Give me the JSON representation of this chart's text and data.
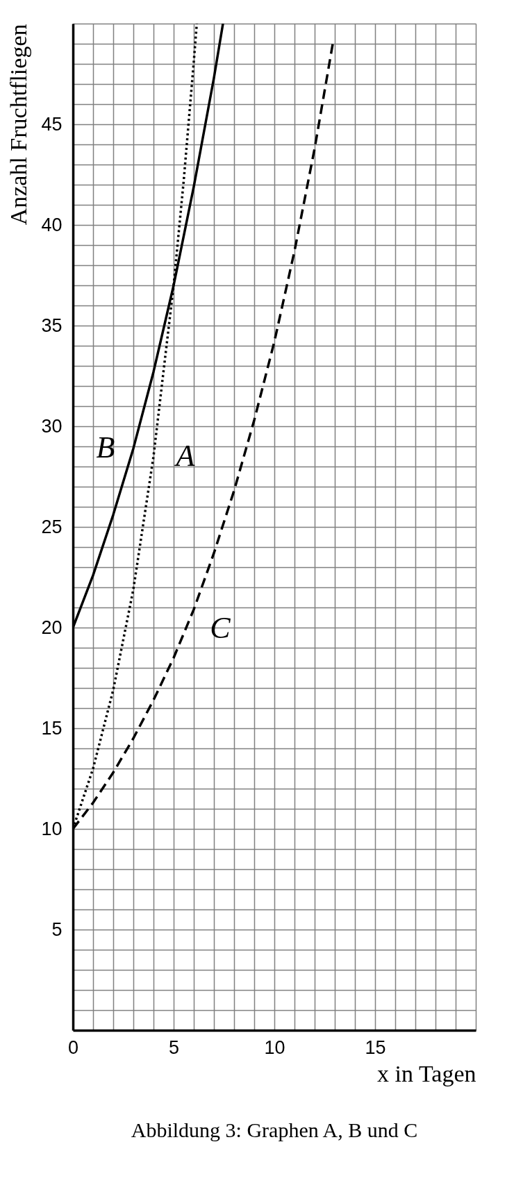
{
  "chart_data": {
    "type": "line",
    "xlabel": "x in Tagen",
    "ylabel": "Anzahl Fruchtfliegen",
    "annotations": [
      "Abbildung 3: Graphen A, B und C"
    ],
    "xlim": [
      0,
      20
    ],
    "ylim": [
      0,
      50
    ],
    "xticks": [
      0,
      {
        "value": 1,
        "label": null
      },
      {
        "value": 2,
        "label": null
      },
      {
        "value": 3,
        "label": null
      },
      {
        "value": 4,
        "label": null
      },
      5,
      {
        "value": 6,
        "label": null
      },
      {
        "value": 7,
        "label": null
      },
      {
        "value": 8,
        "label": null
      },
      {
        "value": 9,
        "label": null
      },
      10,
      {
        "value": 11,
        "label": null
      },
      {
        "value": 12,
        "label": null
      },
      {
        "value": 13,
        "label": null
      },
      {
        "value": 14,
        "label": null
      },
      15,
      {
        "value": 16,
        "label": null
      },
      {
        "value": 17,
        "label": null
      },
      {
        "value": 18,
        "label": null
      },
      {
        "value": 19,
        "label": null
      },
      {
        "value": 20,
        "label": null
      }
    ],
    "yticks": [
      {
        "value": 0,
        "label": null
      },
      {
        "value": 1,
        "label": null
      },
      {
        "value": 2,
        "label": null
      },
      {
        "value": 3,
        "label": null
      },
      {
        "value": 4,
        "label": null
      },
      5,
      {
        "value": 6,
        "label": null
      },
      {
        "value": 7,
        "label": null
      },
      {
        "value": 8,
        "label": null
      },
      {
        "value": 9,
        "label": null
      },
      10,
      {
        "value": 11,
        "label": null
      },
      {
        "value": 12,
        "label": null
      },
      {
        "value": 13,
        "label": null
      },
      {
        "value": 14,
        "label": null
      },
      15,
      {
        "value": 16,
        "label": null
      },
      {
        "value": 17,
        "label": null
      },
      {
        "value": 18,
        "label": null
      },
      {
        "value": 19,
        "label": null
      },
      20,
      {
        "value": 21,
        "label": null
      },
      {
        "value": 22,
        "label": null
      },
      {
        "value": 23,
        "label": null
      },
      {
        "value": 24,
        "label": null
      },
      25,
      {
        "value": 26,
        "label": null
      },
      {
        "value": 27,
        "label": null
      },
      {
        "value": 28,
        "label": null
      },
      {
        "value": 29,
        "label": null
      },
      30,
      {
        "value": 31,
        "label": null
      },
      {
        "value": 32,
        "label": null
      },
      {
        "value": 33,
        "label": null
      },
      {
        "value": 34,
        "label": null
      },
      35,
      {
        "value": 36,
        "label": null
      },
      {
        "value": 37,
        "label": null
      },
      {
        "value": 38,
        "label": null
      },
      {
        "value": 39,
        "label": null
      },
      40,
      {
        "value": 41,
        "label": null
      },
      {
        "value": 42,
        "label": null
      },
      {
        "value": 43,
        "label": null
      },
      {
        "value": 44,
        "label": null
      },
      45,
      {
        "value": 46,
        "label": null
      },
      {
        "value": 47,
        "label": null
      },
      {
        "value": 48,
        "label": null
      },
      {
        "value": 49,
        "label": null
      },
      {
        "value": 50,
        "label": null
      }
    ],
    "grid": true,
    "marker": "none",
    "series": [
      {
        "name": "A",
        "color": "#000000",
        "line_style": "dotted",
        "x": [
          0,
          1,
          2,
          3,
          4,
          5,
          5.5,
          6,
          6.15
        ],
        "values": [
          10,
          13.0,
          16.9,
          21.9,
          28.5,
          37.0,
          42.2,
          48.1,
          50.0
        ]
      },
      {
        "name": "B",
        "color": "#000000",
        "line_style": "solid",
        "x": [
          0,
          1,
          2,
          3,
          4,
          5,
          6,
          7,
          7.45
        ],
        "values": [
          20,
          22.6,
          25.6,
          28.9,
          32.7,
          37.0,
          41.9,
          47.3,
          50.0
        ]
      },
      {
        "name": "C",
        "color": "#000000",
        "line_style": "dashed",
        "x": [
          0,
          1,
          2,
          3,
          4,
          5,
          6,
          7,
          8,
          9,
          10,
          11,
          12,
          12.9
        ],
        "values": [
          10,
          11.3,
          12.8,
          14.5,
          16.4,
          18.5,
          20.9,
          23.7,
          26.8,
          30.3,
          34.2,
          38.7,
          43.8,
          49.0
        ]
      }
    ]
  }
}
